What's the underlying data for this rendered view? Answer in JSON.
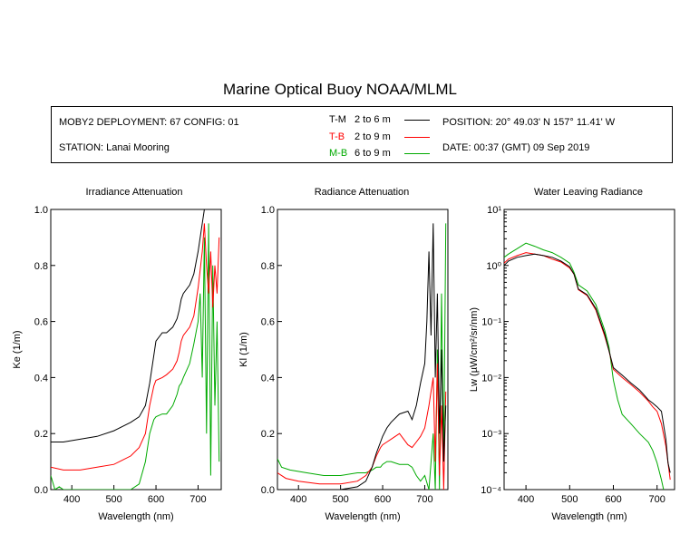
{
  "title": "Marine Optical Buoy NOAA/MLML",
  "info": {
    "deployment": "MOBY2 DEPLOYMENT: 67 CONFIG: 01",
    "station": "STATION: Lanai Mooring",
    "position": "POSITION: 20° 49.03' N   157° 11.41' W",
    "date": "DATE: 00:37 (GMT) 09 Sep 2019"
  },
  "legend": [
    {
      "code": "T-M",
      "depths": "2 to 6  m",
      "color": "#000000"
    },
    {
      "code": "T-B",
      "depths": "2 to 9  m",
      "color": "#ff0000"
    },
    {
      "code": "M-B",
      "depths": "6 to 9  m",
      "color": "#00aa00"
    }
  ],
  "chart_data": [
    {
      "type": "line",
      "title": "Irradiance Attenuation",
      "xlabel": "Wavelength (nm)",
      "ylabel": "Ke  (1/m)",
      "xlim": [
        350,
        755
      ],
      "ylim": [
        0,
        1.0
      ],
      "xticks": [
        400,
        500,
        600,
        700
      ],
      "yticks": [
        0.0,
        0.2,
        0.4,
        0.6,
        0.8,
        1.0
      ],
      "ytick_labels": [
        "0.0",
        "0.2",
        "0.4",
        "0.6",
        "0.8",
        "1.0"
      ],
      "series": [
        {
          "name": "T-M",
          "color": "#000000",
          "x": [
            350,
            380,
            420,
            460,
            500,
            540,
            560,
            575,
            585,
            595,
            600,
            615,
            625,
            640,
            650,
            655,
            660,
            665,
            680,
            690,
            700,
            710,
            715,
            720,
            730,
            740,
            750
          ],
          "y": [
            0.17,
            0.17,
            0.18,
            0.19,
            0.21,
            0.24,
            0.26,
            0.3,
            0.38,
            0.48,
            0.53,
            0.56,
            0.56,
            0.58,
            0.61,
            0.64,
            0.68,
            0.7,
            0.73,
            0.77,
            0.85,
            0.95,
            1.0,
            1.0,
            1.0,
            1.0,
            1.0
          ]
        },
        {
          "name": "T-B",
          "color": "#ff0000",
          "x": [
            350,
            380,
            420,
            460,
            500,
            540,
            560,
            575,
            585,
            595,
            600,
            615,
            625,
            640,
            650,
            655,
            660,
            665,
            680,
            690,
            700,
            710,
            715,
            720,
            725,
            730,
            735,
            740,
            745,
            750
          ],
          "y": [
            0.08,
            0.07,
            0.07,
            0.08,
            0.09,
            0.12,
            0.15,
            0.2,
            0.3,
            0.37,
            0.39,
            0.4,
            0.41,
            0.43,
            0.46,
            0.49,
            0.53,
            0.55,
            0.58,
            0.62,
            0.72,
            0.85,
            0.95,
            0.8,
            0.7,
            0.85,
            0.65,
            0.8,
            0.7,
            0.9
          ]
        },
        {
          "name": "M-B",
          "color": "#00aa00",
          "x": [
            350,
            360,
            370,
            380,
            420,
            460,
            500,
            540,
            560,
            575,
            585,
            595,
            600,
            615,
            625,
            640,
            650,
            655,
            660,
            665,
            680,
            690,
            700,
            705,
            710,
            715,
            720,
            725,
            730,
            735,
            740,
            745,
            750
          ],
          "y": [
            0.05,
            0.0,
            0.01,
            0.0,
            0.0,
            0.0,
            0.0,
            0.0,
            0.02,
            0.1,
            0.2,
            0.25,
            0.26,
            0.27,
            0.27,
            0.3,
            0.34,
            0.37,
            0.38,
            0.4,
            0.45,
            0.52,
            0.6,
            0.7,
            0.4,
            0.9,
            0.2,
            0.95,
            0.05,
            0.8,
            0.3,
            0.6,
            0.1
          ]
        }
      ]
    },
    {
      "type": "line",
      "title": "Radiance Attenuation",
      "xlabel": "Wavelength (nm)",
      "ylabel": "Kl  (1/m)",
      "xlim": [
        350,
        755
      ],
      "ylim": [
        0,
        1.0
      ],
      "xticks": [
        400,
        500,
        600,
        700
      ],
      "yticks": [
        0.0,
        0.2,
        0.4,
        0.6,
        0.8,
        1.0
      ],
      "ytick_labels": [
        "0.0",
        "0.2",
        "0.4",
        "0.6",
        "0.8",
        "1.0"
      ],
      "series": [
        {
          "name": "T-M",
          "color": "#000000",
          "x": [
            350,
            380,
            420,
            460,
            500,
            540,
            560,
            575,
            585,
            595,
            600,
            610,
            620,
            640,
            660,
            670,
            680,
            690,
            700,
            705,
            710,
            715,
            720,
            725,
            730,
            735,
            740,
            745,
            750
          ],
          "y": [
            0.0,
            0.0,
            0.0,
            0.0,
            0.0,
            0.01,
            0.03,
            0.08,
            0.13,
            0.17,
            0.19,
            0.22,
            0.24,
            0.27,
            0.28,
            0.25,
            0.3,
            0.38,
            0.45,
            0.6,
            0.85,
            0.55,
            0.95,
            0.4,
            0.7,
            0.2,
            0.5,
            0.1,
            0.3
          ]
        },
        {
          "name": "T-B",
          "color": "#ff0000",
          "x": [
            350,
            370,
            400,
            450,
            500,
            540,
            560,
            575,
            585,
            595,
            600,
            610,
            620,
            640,
            660,
            670,
            680,
            690,
            700,
            710,
            715,
            720,
            725,
            730,
            735,
            740,
            745,
            750
          ],
          "y": [
            0.06,
            0.04,
            0.03,
            0.02,
            0.02,
            0.03,
            0.05,
            0.08,
            0.12,
            0.15,
            0.16,
            0.17,
            0.18,
            0.2,
            0.16,
            0.15,
            0.17,
            0.19,
            0.22,
            0.3,
            0.35,
            0.4,
            0.1,
            0.45,
            0.05,
            0.3,
            0.0,
            0.35
          ]
        },
        {
          "name": "M-B",
          "color": "#00aa00",
          "x": [
            350,
            360,
            380,
            420,
            460,
            500,
            540,
            560,
            575,
            585,
            595,
            600,
            610,
            620,
            640,
            660,
            670,
            680,
            690,
            700,
            710,
            720,
            725,
            730,
            735,
            740,
            745,
            750
          ],
          "y": [
            0.11,
            0.08,
            0.07,
            0.06,
            0.05,
            0.05,
            0.06,
            0.06,
            0.07,
            0.08,
            0.08,
            0.09,
            0.1,
            0.1,
            0.09,
            0.09,
            0.08,
            0.05,
            0.03,
            0.05,
            0.0,
            0.2,
            0.0,
            0.5,
            0.0,
            0.7,
            0.1,
            0.95
          ]
        }
      ]
    },
    {
      "type": "line",
      "title": "Water Leaving Radiance",
      "xlabel": "Wavelength (nm)",
      "ylabel": "Lw  (µW/cm²/sr/nm)",
      "xlim": [
        350,
        740
      ],
      "ylim": [
        0.0001,
        10
      ],
      "yscale": "log",
      "xticks": [
        400,
        500,
        600,
        700
      ],
      "yticks": [
        0.0001,
        0.001,
        0.01,
        0.1,
        1,
        10
      ],
      "ytick_labels": [
        "10⁻⁴",
        "10⁻³",
        "10⁻²",
        "10⁻¹",
        "10⁰",
        "10¹"
      ],
      "series": [
        {
          "name": "T-M",
          "color": "#000000",
          "x": [
            350,
            360,
            380,
            400,
            420,
            440,
            460,
            480,
            500,
            510,
            520,
            540,
            560,
            580,
            590,
            600,
            620,
            640,
            660,
            680,
            690,
            700,
            710,
            720,
            725,
            730
          ],
          "y": [
            1.0,
            1.2,
            1.4,
            1.5,
            1.6,
            1.5,
            1.4,
            1.2,
            0.95,
            0.7,
            0.38,
            0.3,
            0.17,
            0.06,
            0.03,
            0.015,
            0.011,
            0.008,
            0.006,
            0.004,
            0.0035,
            0.003,
            0.0025,
            0.0008,
            0.0003,
            0.0002
          ]
        },
        {
          "name": "T-B",
          "color": "#ff0000",
          "x": [
            350,
            360,
            380,
            400,
            420,
            440,
            460,
            480,
            500,
            510,
            520,
            540,
            560,
            580,
            590,
            600,
            620,
            640,
            660,
            680,
            690,
            700,
            710,
            720,
            725,
            730
          ],
          "y": [
            1.1,
            1.3,
            1.5,
            1.7,
            1.6,
            1.5,
            1.3,
            1.15,
            0.9,
            0.7,
            0.37,
            0.29,
            0.16,
            0.055,
            0.03,
            0.014,
            0.01,
            0.0075,
            0.0055,
            0.0038,
            0.003,
            0.0025,
            0.0015,
            0.0006,
            0.0003,
            0.00015
          ]
        },
        {
          "name": "M-B",
          "color": "#00aa00",
          "x": [
            350,
            360,
            380,
            400,
            420,
            440,
            460,
            480,
            500,
            510,
            520,
            540,
            560,
            580,
            590,
            600,
            610,
            620,
            640,
            660,
            680,
            690,
            700,
            710,
            715
          ],
          "y": [
            1.4,
            1.6,
            2.0,
            2.5,
            2.2,
            1.9,
            1.7,
            1.4,
            1.1,
            0.75,
            0.45,
            0.35,
            0.2,
            0.07,
            0.035,
            0.009,
            0.004,
            0.0022,
            0.0015,
            0.001,
            0.0007,
            0.0005,
            0.0003,
            0.00015,
            0.0001
          ]
        }
      ]
    }
  ]
}
